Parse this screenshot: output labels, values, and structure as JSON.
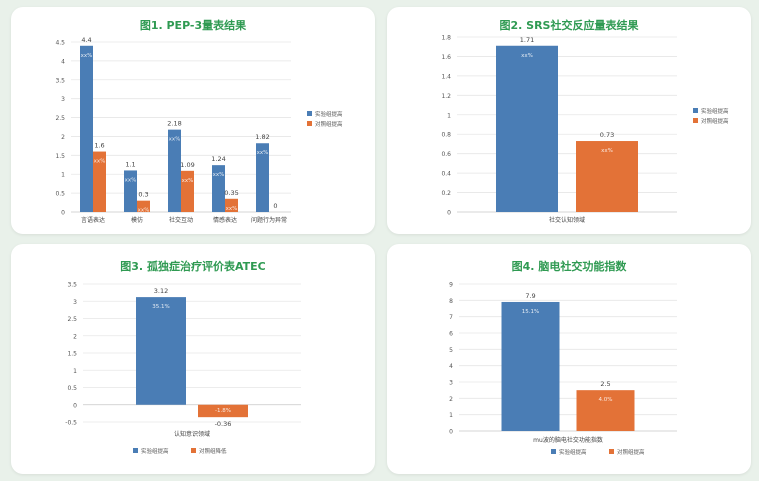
{
  "colors": {
    "experimental": "#4a7db5",
    "control": "#e37237",
    "title": "#2f9a52",
    "background": "#e9f1ea"
  },
  "chart_data": [
    {
      "type": "bar",
      "title": "图1. PEP-3量表结果",
      "categories": [
        "言语表达",
        "模仿",
        "社交互动",
        "情感表达",
        "问题行为异常"
      ],
      "series": [
        {
          "name": "实验组提高",
          "values": [
            4.4,
            1.1,
            2.18,
            1.24,
            1.82
          ],
          "labels": [
            "4.4",
            "1.1",
            "2.18",
            "1.24",
            "1.82"
          ],
          "inner_labels": [
            "xx%",
            "xx%",
            "xx%",
            "xx%",
            "xx%"
          ]
        },
        {
          "name": "对照组提高",
          "values": [
            1.6,
            0.3,
            1.09,
            0.35,
            0
          ],
          "labels": [
            "1.6",
            "0.3",
            "1.09",
            "0.35",
            "0"
          ],
          "inner_labels": [
            "xx%",
            "xx%",
            "xx%",
            "xx%",
            ""
          ]
        }
      ],
      "ylim": [
        0,
        4.5
      ],
      "yticks": [
        "0",
        "0.5",
        "1",
        "1.5",
        "2",
        "2.5",
        "3",
        "3.5",
        "4",
        "4.5"
      ],
      "grid": true,
      "legend": "right"
    },
    {
      "type": "bar",
      "title": "图2. SRS社交反应量表结果",
      "categories": [
        "社交认知领域"
      ],
      "series": [
        {
          "name": "实验组提高",
          "values": [
            1.71
          ],
          "labels": [
            "1.71"
          ],
          "inner_labels": [
            "xx%"
          ]
        },
        {
          "name": "对照组提高",
          "values": [
            0.73
          ],
          "labels": [
            "0.73"
          ],
          "inner_labels": [
            "xx%"
          ]
        }
      ],
      "ylim": [
        0,
        1.8
      ],
      "yticks": [
        "0",
        "0.2",
        "0.4",
        "0.6",
        "0.8",
        "1",
        "1.2",
        "1.4",
        "1.6",
        "1.8"
      ],
      "grid": true,
      "legend": "right"
    },
    {
      "type": "bar",
      "title": "图3. 孤独症治疗评价表ATEC",
      "categories": [
        "认知意识领域"
      ],
      "series": [
        {
          "name": "实验组提高",
          "values": [
            3.12
          ],
          "labels": [
            "3.12"
          ],
          "inner_labels": [
            "35.1%"
          ]
        },
        {
          "name": "对照组降低",
          "values": [
            -0.36
          ],
          "labels": [
            "-0.36"
          ],
          "inner_labels": [
            "-1.8%"
          ]
        }
      ],
      "ylim": [
        -0.5,
        3.5
      ],
      "yticks": [
        "-0.5",
        "0",
        "0.5",
        "1",
        "1.5",
        "2",
        "2.5",
        "3",
        "3.5"
      ],
      "grid": true,
      "legend": "bottom"
    },
    {
      "type": "bar",
      "title": "图4. 脑电社交功能指数",
      "categories": [
        "mu波的脑电社交功能指数"
      ],
      "series": [
        {
          "name": "实验组提高",
          "values": [
            7.9
          ],
          "labels": [
            "7.9"
          ],
          "inner_labels": [
            "15.1%"
          ]
        },
        {
          "name": "对照组提高",
          "values": [
            2.5
          ],
          "labels": [
            "2.5"
          ],
          "inner_labels": [
            "4.0%"
          ]
        }
      ],
      "ylim": [
        0,
        9
      ],
      "yticks": [
        "0",
        "1",
        "2",
        "3",
        "4",
        "5",
        "6",
        "7",
        "8",
        "9"
      ],
      "grid": true,
      "legend": "bottom"
    }
  ]
}
